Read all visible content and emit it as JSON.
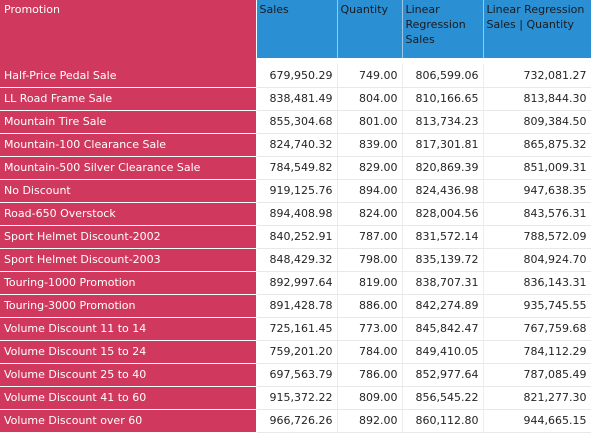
{
  "table": {
    "headers": [
      "Promotion",
      "Sales",
      "Quantity",
      "Linear Regression Sales",
      "Linear Regression Sales | Quantity"
    ],
    "rows": [
      [
        "Half-Price Pedal Sale",
        "679,950.29",
        "749.00",
        "806,599.06",
        "732,081.27"
      ],
      [
        "LL Road Frame Sale",
        "838,481.49",
        "804.00",
        "810,166.65",
        "813,844.30"
      ],
      [
        "Mountain Tire Sale",
        "855,304.68",
        "801.00",
        "813,734.23",
        "809,384.50"
      ],
      [
        "Mountain-100 Clearance Sale",
        "824,740.32",
        "839.00",
        "817,301.81",
        "865,875.32"
      ],
      [
        "Mountain-500 Silver Clearance Sale",
        "784,549.82",
        "829.00",
        "820,869.39",
        "851,009.31"
      ],
      [
        "No Discount",
        "919,125.76",
        "894.00",
        "824,436.98",
        "947,638.35"
      ],
      [
        "Road-650 Overstock",
        "894,408.98",
        "824.00",
        "828,004.56",
        "843,576.31"
      ],
      [
        "Sport Helmet Discount-2002",
        "840,252.91",
        "787.00",
        "831,572.14",
        "788,572.09"
      ],
      [
        "Sport Helmet Discount-2003",
        "848,429.32",
        "798.00",
        "835,139.72",
        "804,924.70"
      ],
      [
        "Touring-1000 Promotion",
        "892,997.64",
        "819.00",
        "838,707.31",
        "836,143.31"
      ],
      [
        "Touring-3000 Promotion",
        "891,428.78",
        "886.00",
        "842,274.89",
        "935,745.55"
      ],
      [
        "Volume Discount 11 to 14",
        "725,161.45",
        "773.00",
        "845,842.47",
        "767,759.68"
      ],
      [
        "Volume Discount 15 to 24",
        "759,201.20",
        "784.00",
        "849,410.05",
        "784,112.29"
      ],
      [
        "Volume Discount 25 to 40",
        "697,563.79",
        "786.00",
        "852,977.64",
        "787,085.49"
      ],
      [
        "Volume Discount 41 to 60",
        "915,372.22",
        "809.00",
        "856,545.22",
        "821,277.30"
      ],
      [
        "Volume Discount over 60",
        "966,726.26",
        "892.00",
        "860,112.80",
        "944,665.15"
      ]
    ]
  },
  "colors": {
    "promotion_fill": "#D0385E",
    "header_numeric_fill": "#2B8FD4"
  }
}
